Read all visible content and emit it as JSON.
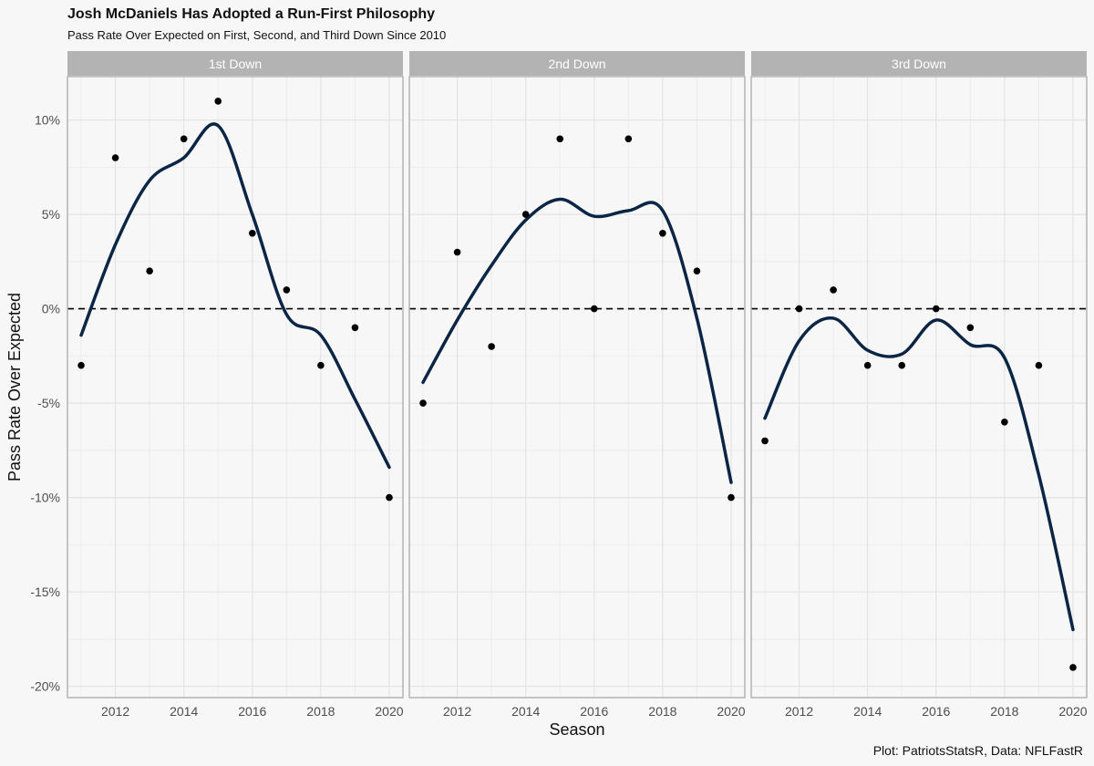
{
  "title": "Josh McDaniels Has Adopted a Run-First Philosophy",
  "subtitle": "Pass Rate Over Expected on First, Second, and Third Down Since 2010",
  "caption": "Plot: PatriotsStatsR, Data: NFLFastR",
  "colors": {
    "line": "#0b2545",
    "point": "#000000",
    "strip": "#b3b3b3",
    "panel_border": "#b3b3b3",
    "grid_major": "#e3e3e3",
    "grid_minor": "#ececec",
    "background": "#f7f7f7"
  },
  "chart_data": {
    "type": "scatter",
    "xlabel": "Season",
    "ylabel": "Pass Rate Over Expected",
    "x_ticks": [
      2012,
      2014,
      2016,
      2018,
      2020
    ],
    "x_tick_labels": [
      "2012",
      "2014",
      "2016",
      "2018",
      "2020"
    ],
    "y_ticks": [
      10,
      5,
      0,
      -5,
      -10,
      -15,
      -20
    ],
    "y_tick_labels": [
      "10%",
      "5%",
      "0%",
      "-5%",
      "-10%",
      "-15%",
      "-20%"
    ],
    "xlim": [
      2010.6,
      2020.4
    ],
    "ylim": [
      -20.6,
      12.3
    ],
    "reference_line": {
      "y": 0,
      "style": "dashed"
    },
    "grid": true,
    "facets": [
      {
        "label": "1st Down",
        "x": [
          2011,
          2012,
          2013,
          2014,
          2015,
          2016,
          2017,
          2018,
          2019,
          2020
        ],
        "y": [
          -3,
          8,
          2,
          9,
          11,
          4,
          1,
          -3,
          -1,
          -10
        ],
        "smooth": [
          [
            2011,
            -1.4
          ],
          [
            2012,
            3.4
          ],
          [
            2013,
            6.8
          ],
          [
            2014,
            8.0
          ],
          [
            2015,
            9.7
          ],
          [
            2016,
            5.0
          ],
          [
            2017,
            -0.3
          ],
          [
            2018,
            -1.4
          ],
          [
            2019,
            -4.8
          ],
          [
            2020,
            -8.4
          ]
        ]
      },
      {
        "label": "2nd Down",
        "x": [
          2011,
          2012,
          2013,
          2014,
          2015,
          2016,
          2017,
          2018,
          2019,
          2020
        ],
        "y": [
          -5,
          3,
          -2,
          5,
          9,
          0,
          9,
          4,
          2,
          -10
        ],
        "smooth": [
          [
            2011,
            -3.9
          ],
          [
            2012,
            -0.6
          ],
          [
            2013,
            2.3
          ],
          [
            2014,
            4.7
          ],
          [
            2015,
            5.8
          ],
          [
            2016,
            4.9
          ],
          [
            2017,
            5.2
          ],
          [
            2018,
            5.2
          ],
          [
            2019,
            -0.5
          ],
          [
            2020,
            -9.2
          ]
        ]
      },
      {
        "label": "3rd Down",
        "x": [
          2011,
          2012,
          2013,
          2014,
          2015,
          2016,
          2017,
          2018,
          2019,
          2020
        ],
        "y": [
          -7,
          0,
          1,
          -3,
          -3,
          0,
          -1,
          -6,
          -3,
          -19
        ],
        "smooth": [
          [
            2011,
            -5.8
          ],
          [
            2012,
            -1.7
          ],
          [
            2013,
            -0.5
          ],
          [
            2014,
            -2.2
          ],
          [
            2015,
            -2.4
          ],
          [
            2016,
            -0.6
          ],
          [
            2017,
            -1.9
          ],
          [
            2018,
            -2.6
          ],
          [
            2019,
            -8.8
          ],
          [
            2020,
            -17.0
          ]
        ]
      }
    ]
  }
}
